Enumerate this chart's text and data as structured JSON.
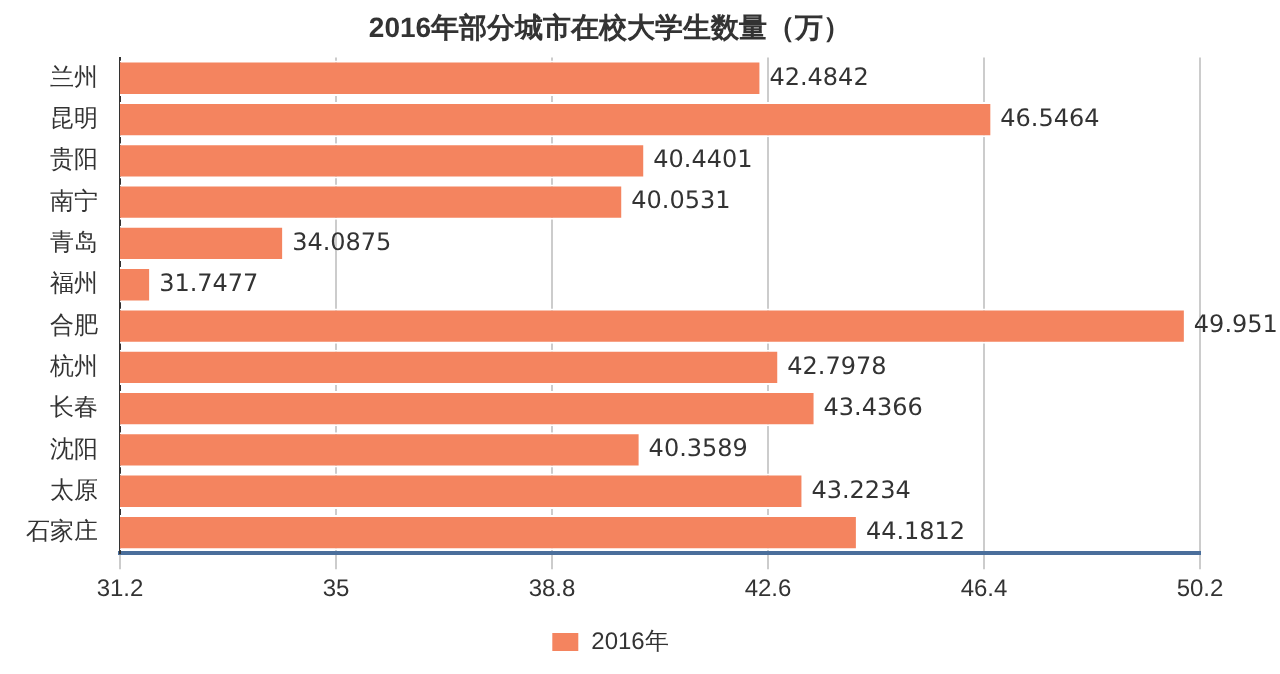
{
  "chart_data": {
    "type": "bar",
    "orientation": "horizontal",
    "title": "2016年部分城市在校大学生数量（万）",
    "categories": [
      "兰州",
      "昆明",
      "贵阳",
      "南宁",
      "青岛",
      "福州",
      "合肥",
      "杭州",
      "长春",
      "沈阳",
      "太原",
      "石家庄"
    ],
    "series": [
      {
        "name": "2016年",
        "color": "#f4845f",
        "values": [
          42.4842,
          46.5464,
          40.4401,
          40.0531,
          34.0875,
          31.7477,
          49.951,
          42.7978,
          43.4366,
          40.3589,
          43.2234,
          44.1812
        ]
      }
    ],
    "xlim": [
      31.2,
      50.2
    ],
    "xticks": [
      31.2,
      35,
      38.8,
      42.6,
      46.4,
      50.2
    ],
    "grid": "x",
    "legend": "bottom",
    "data_labels": true
  }
}
